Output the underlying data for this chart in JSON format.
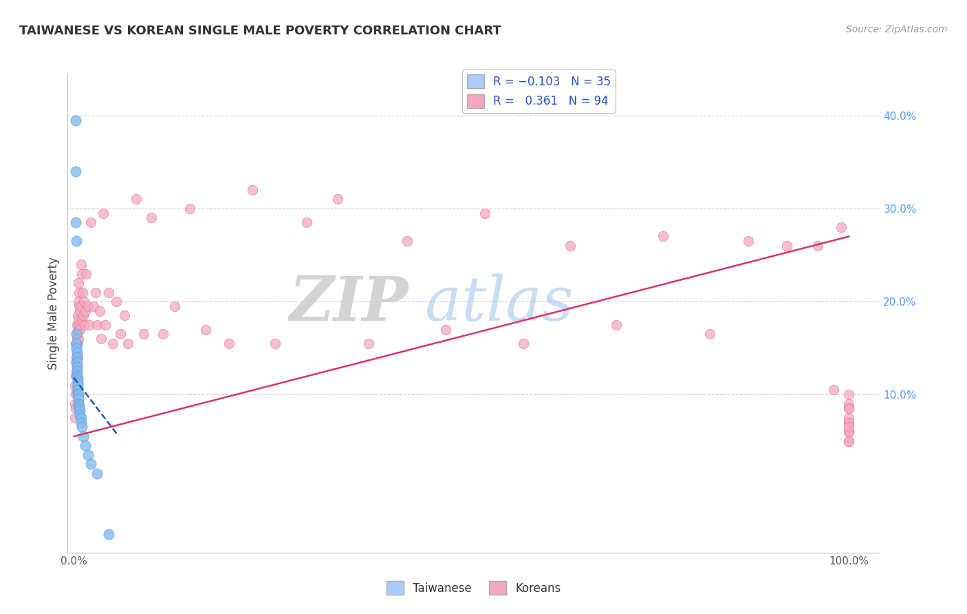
{
  "title": "TAIWANESE VS KOREAN SINGLE MALE POVERTY CORRELATION CHART",
  "source": "Source: ZipAtlas.com",
  "ylabel": "Single Male Poverty",
  "watermark_zip": "ZIP",
  "watermark_atlas": "atlas",
  "taiwan_color": "#85bbee",
  "taiwan_edge_color": "#5599dd",
  "korean_color": "#f4a8c0",
  "korean_edge_color": "#e07090",
  "taiwan_line_color": "#2255aa",
  "korean_line_color": "#dd3366",
  "background_color": "#ffffff",
  "grid_color": "#cccccc",
  "xlim": [
    -0.008,
    1.04
  ],
  "ylim": [
    -0.07,
    0.445
  ],
  "x_ticks": [
    0.0,
    1.0
  ],
  "x_tick_labels": [
    "0.0%",
    "100.0%"
  ],
  "y_ticks": [
    0.1,
    0.2,
    0.3,
    0.4
  ],
  "y_tick_labels": [
    "10.0%",
    "20.0%",
    "30.0%",
    "40.0%"
  ],
  "taiwan_x": [
    0.002,
    0.002,
    0.002,
    0.003,
    0.003,
    0.003,
    0.003,
    0.004,
    0.004,
    0.004,
    0.004,
    0.004,
    0.004,
    0.005,
    0.005,
    0.005,
    0.005,
    0.005,
    0.005,
    0.006,
    0.006,
    0.006,
    0.007,
    0.007,
    0.008,
    0.008,
    0.009,
    0.009,
    0.01,
    0.012,
    0.015,
    0.018,
    0.022,
    0.03,
    0.045
  ],
  "taiwan_y": [
    0.395,
    0.34,
    0.285,
    0.265,
    0.165,
    0.155,
    0.15,
    0.145,
    0.14,
    0.135,
    0.13,
    0.125,
    0.12,
    0.118,
    0.115,
    0.112,
    0.11,
    0.105,
    0.1,
    0.1,
    0.095,
    0.09,
    0.088,
    0.085,
    0.082,
    0.078,
    0.075,
    0.07,
    0.065,
    0.055,
    0.045,
    0.035,
    0.025,
    0.015,
    -0.05
  ],
  "korean_x": [
    0.001,
    0.001,
    0.001,
    0.002,
    0.002,
    0.002,
    0.002,
    0.002,
    0.003,
    0.003,
    0.003,
    0.003,
    0.003,
    0.004,
    0.004,
    0.004,
    0.004,
    0.005,
    0.005,
    0.005,
    0.005,
    0.006,
    0.006,
    0.006,
    0.006,
    0.007,
    0.007,
    0.007,
    0.008,
    0.008,
    0.009,
    0.009,
    0.01,
    0.01,
    0.011,
    0.012,
    0.013,
    0.014,
    0.015,
    0.016,
    0.018,
    0.02,
    0.022,
    0.025,
    0.028,
    0.03,
    0.033,
    0.035,
    0.038,
    0.04,
    0.045,
    0.05,
    0.055,
    0.06,
    0.065,
    0.07,
    0.08,
    0.09,
    0.1,
    0.115,
    0.13,
    0.15,
    0.17,
    0.2,
    0.23,
    0.26,
    0.3,
    0.34,
    0.38,
    0.43,
    0.48,
    0.53,
    0.58,
    0.64,
    0.7,
    0.76,
    0.82,
    0.87,
    0.92,
    0.96,
    0.98,
    0.99,
    1.0,
    1.0,
    1.0,
    1.0,
    1.0,
    1.0,
    1.0,
    1.0,
    1.0,
    1.0,
    1.0,
    1.0
  ],
  "korean_y": [
    0.11,
    0.09,
    0.075,
    0.155,
    0.135,
    0.12,
    0.1,
    0.085,
    0.165,
    0.155,
    0.14,
    0.125,
    0.105,
    0.175,
    0.16,
    0.145,
    0.13,
    0.185,
    0.17,
    0.155,
    0.14,
    0.22,
    0.2,
    0.18,
    0.16,
    0.21,
    0.195,
    0.175,
    0.19,
    0.17,
    0.24,
    0.195,
    0.23,
    0.18,
    0.21,
    0.185,
    0.2,
    0.175,
    0.19,
    0.23,
    0.195,
    0.175,
    0.285,
    0.195,
    0.21,
    0.175,
    0.19,
    0.16,
    0.295,
    0.175,
    0.21,
    0.155,
    0.2,
    0.165,
    0.185,
    0.155,
    0.31,
    0.165,
    0.29,
    0.165,
    0.195,
    0.3,
    0.17,
    0.155,
    0.32,
    0.155,
    0.285,
    0.31,
    0.155,
    0.265,
    0.17,
    0.295,
    0.155,
    0.26,
    0.175,
    0.27,
    0.165,
    0.265,
    0.26,
    0.26,
    0.105,
    0.28,
    0.1,
    0.085,
    0.07,
    0.06,
    0.05,
    0.09,
    0.075,
    0.085,
    0.07,
    0.06,
    0.05,
    0.065
  ]
}
